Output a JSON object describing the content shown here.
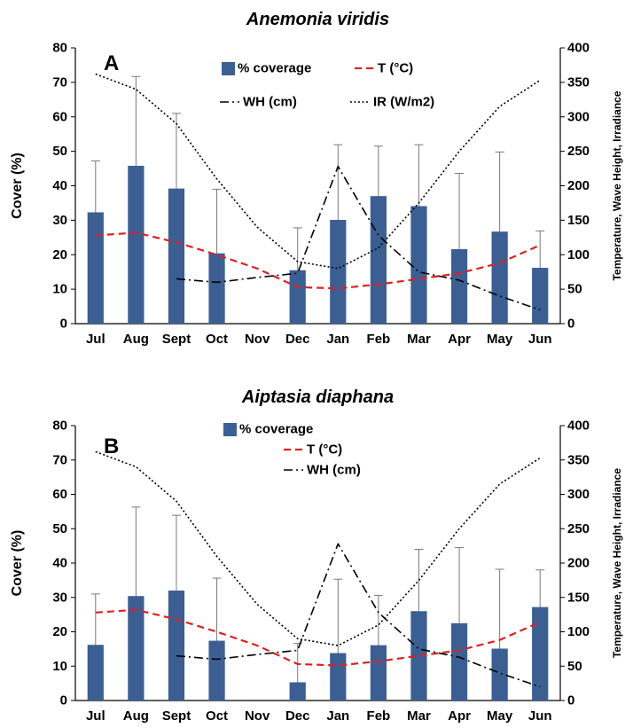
{
  "chart_data": [
    {
      "type": "bar",
      "panel_label": "A",
      "title": "Anemonia viridis",
      "ylabel": "Cover (%)",
      "y2label": "Temperature, Wave Height, Irradiance",
      "ylim": [
        0,
        80
      ],
      "y2lim": [
        0,
        400
      ],
      "yticks": [
        0,
        10,
        20,
        30,
        40,
        50,
        60,
        70,
        80
      ],
      "y2ticks": [
        0,
        50,
        100,
        150,
        200,
        250,
        300,
        350,
        400
      ],
      "categories": [
        "Jul",
        "Aug",
        "Sept",
        "Oct",
        "Nov",
        "Dec",
        "Jan",
        "Feb",
        "Mar",
        "Apr",
        "May",
        "Jun"
      ],
      "legend": {
        "position": "top-center"
      },
      "series": [
        {
          "name": "% coverage",
          "kind": "bar",
          "axis": "left",
          "color": "#3b5f93",
          "values": [
            32.3,
            45.8,
            39.2,
            20.4,
            null,
            15.5,
            30.1,
            37.0,
            34.1,
            21.6,
            26.7,
            16.2
          ],
          "error": [
            14.9,
            25.9,
            21.8,
            18.6,
            null,
            12.3,
            21.8,
            14.5,
            17.8,
            22.0,
            23.1,
            10.7
          ]
        },
        {
          "name": "T (°C)",
          "kind": "line",
          "style": "dashed",
          "axis": "right",
          "color": "#e02020",
          "values": [
            128,
            132,
            118,
            100,
            80,
            53,
            51,
            57,
            65,
            73,
            88,
            114
          ]
        },
        {
          "name": "WH (cm)",
          "kind": "line",
          "style": "dashdot",
          "axis": "right",
          "color": "#000000",
          "values": [
            null,
            null,
            65,
            60,
            67,
            73,
            228,
            128,
            75,
            63,
            40,
            20
          ]
        },
        {
          "name": "IR (W/m2)",
          "kind": "line",
          "style": "dotted",
          "axis": "right",
          "color": "#000000",
          "values": [
            362,
            340,
            290,
            210,
            140,
            90,
            80,
            110,
            175,
            250,
            315,
            353
          ]
        }
      ]
    },
    {
      "type": "bar",
      "panel_label": "B",
      "title": "Aiptasia diaphana",
      "ylabel": "Cover (%)",
      "y2label": "Temperature, Wave Height, Irradiance",
      "ylim": [
        0,
        80
      ],
      "y2lim": [
        0,
        400
      ],
      "yticks": [
        0,
        10,
        20,
        30,
        40,
        50,
        60,
        70,
        80
      ],
      "y2ticks": [
        0,
        50,
        100,
        150,
        200,
        250,
        300,
        350,
        400
      ],
      "categories": [
        "Jul",
        "Aug",
        "Sept",
        "Oct",
        "Nov",
        "Dec",
        "Jan",
        "Feb",
        "Mar",
        "Apr",
        "May",
        "Jun"
      ],
      "legend": {
        "position": "top-center"
      },
      "series": [
        {
          "name": "% coverage",
          "kind": "bar",
          "axis": "left",
          "color": "#3b5f93",
          "values": [
            16.2,
            30.4,
            32.0,
            17.4,
            null,
            5.3,
            13.8,
            16.1,
            26.0,
            22.5,
            15.1,
            27.2
          ],
          "error": [
            14.8,
            25.9,
            21.9,
            18.2,
            null,
            11.3,
            21.5,
            14.5,
            18.0,
            22.0,
            23.1,
            10.8
          ]
        },
        {
          "name": "T (°C)",
          "kind": "line",
          "style": "dashed",
          "axis": "right",
          "color": "#e02020",
          "values": [
            128,
            132,
            118,
            100,
            80,
            53,
            51,
            57,
            65,
            73,
            88,
            114
          ]
        },
        {
          "name": "WH (cm)",
          "kind": "line",
          "style": "dashdot",
          "axis": "right",
          "color": "#000000",
          "values": [
            null,
            null,
            65,
            60,
            67,
            73,
            228,
            128,
            75,
            63,
            40,
            20
          ]
        },
        {
          "name": "",
          "kind": "line",
          "style": "dotted",
          "axis": "right",
          "color": "#000000",
          "values": [
            362,
            340,
            290,
            210,
            140,
            90,
            80,
            110,
            175,
            250,
            315,
            353
          ]
        }
      ]
    }
  ]
}
